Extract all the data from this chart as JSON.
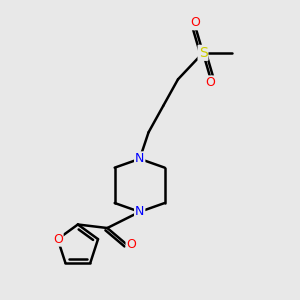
{
  "bg_color": "#e8e8e8",
  "atom_colors": {
    "C": "#000000",
    "N": "#0000ff",
    "O": "#ff0000",
    "S": "#cccc00"
  },
  "line_color": "#000000",
  "line_width": 1.8,
  "font_size_atom": 9,
  "figsize": [
    3.0,
    3.0
  ],
  "dpi": 100,
  "xlim": [
    0,
    10
  ],
  "ylim": [
    0,
    10
  ]
}
